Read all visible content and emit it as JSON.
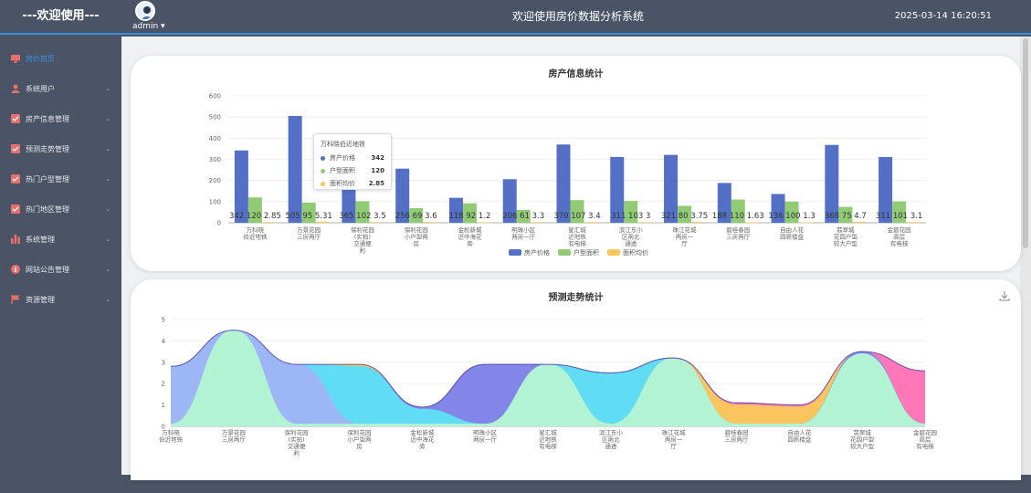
{
  "header": {
    "brand": "---欢迎使用---",
    "user_name": "admin ▾",
    "system_title": "欢迎使用房价数据分析系统",
    "datetime": "2025-03-14 16:20:51"
  },
  "sidebar": {
    "items": [
      {
        "label": "房价首页",
        "icon": "monitor-icon",
        "active": true
      },
      {
        "label": "系统用户",
        "icon": "user-icon"
      },
      {
        "label": "房产信息管理",
        "icon": "checklist-icon"
      },
      {
        "label": "预测走势管理",
        "icon": "checklist-icon"
      },
      {
        "label": "热门户型管理",
        "icon": "checklist-icon"
      },
      {
        "label": "热门地区管理",
        "icon": "checklist-icon"
      },
      {
        "label": "系统管理",
        "icon": "bar-chart-icon"
      },
      {
        "label": "网站公告管理",
        "icon": "info-icon"
      },
      {
        "label": "资源管理",
        "icon": "flag-icon"
      }
    ]
  },
  "colors": {
    "accent": "#3d8fe0",
    "series_price": "#5470c6",
    "series_area": "#91cc75",
    "series_unit": "#fac858"
  },
  "tooltip": {
    "title": "万科晓伯近地铁",
    "rows": [
      {
        "name": "房产价格",
        "value": "342"
      },
      {
        "name": "户型面积",
        "value": "120"
      },
      {
        "name": "面积均价",
        "value": "2.85"
      }
    ]
  },
  "chart_data": [
    {
      "type": "bar",
      "title": "房产信息统计",
      "categories": [
        "万科晓\n伯近地铁",
        "万景花园\n三房两厅",
        "保利花园\n(实拍)\n交通便\n利",
        "保利花园\n小户型两\n房",
        "金松新城\n近中海花\n旁",
        "明珠小区\n两房一厅",
        "星汇城\n近地铁\n有电梯",
        "滨江东小\n区南北\n通透",
        "珠江花城\n两房一\n厅",
        "碧桂春园\n三房两厅",
        "自由人花\n园新楼盘",
        "翡翠城\n花园户型\n较大户型",
        "金碧花园\n高层\n有电梯"
      ],
      "series": [
        {
          "name": "房产价格",
          "values": [
            342,
            505,
            365,
            256,
            118,
            206,
            370,
            311,
            321,
            188,
            136,
            368,
            311
          ]
        },
        {
          "name": "户型面积",
          "values": [
            120,
            95,
            102,
            69,
            92,
            61,
            107,
            103,
            80,
            110,
            100,
            75,
            101
          ]
        },
        {
          "name": "面积均价",
          "values": [
            2.85,
            5.31,
            3.5,
            3.6,
            1.2,
            3.3,
            3.4,
            3.0,
            3.75,
            1.63,
            1.3,
            4.7,
            3.1
          ]
        }
      ],
      "data_labels": [
        "342 120 2.85",
        "505 95 5.31",
        "365 102 3.5",
        "256 69 3.6",
        "118 92 1.2",
        "206 61 3.3",
        "370 107 3.4",
        "311 103 3",
        "321 80 3.75",
        "188 110 1.63",
        "136 100 1.3",
        "368 75 4.7",
        "311 101 3.1"
      ],
      "yticks": [
        "0",
        "100",
        "200",
        "300",
        "400",
        "500",
        "600"
      ],
      "ylim": [
        0,
        600
      ],
      "legend": [
        "房产价格",
        "户型面积",
        "面积均价"
      ],
      "legend_position": "bottom-center",
      "grid": true
    },
    {
      "type": "area",
      "title": "预测走势统计",
      "categories": [
        "万科晓\n伯近地铁",
        "万景花园\n三房两厅",
        "保利花园\n(实拍)\n交通便\n利",
        "保利花园\n小户型两\n房",
        "金松新城\n近中海花\n旁",
        "明珠小区\n两房一厅",
        "星汇城\n近地铁\n有电梯",
        "滨江东小\n区南北\n通透",
        "珠江花城\n两房一\n厅",
        "碧桂春园\n三房两厅",
        "自由人花\n园新楼盘",
        "翡翠城\n花园户型\n较大户型",
        "金碧花园\n高层\n有电梯"
      ],
      "series": [
        {
          "name": "",
          "color": "#ff6fb5",
          "values": [
            2.8,
            4.5,
            2.9,
            2.9,
            0.9,
            2.9,
            2.9,
            2.5,
            3.2,
            1.1,
            1.0,
            3.5,
            2.6
          ]
        },
        {
          "name": "",
          "color": "#fac858",
          "values": [
            2.8,
            4.5,
            2.9,
            2.9,
            0.9,
            2.9,
            2.9,
            2.5,
            3.2,
            1.0,
            0.9,
            3.5,
            0.1
          ]
        },
        {
          "name": "",
          "color": "#7b83f0",
          "values": [
            2.8,
            4.5,
            2.9,
            2.8,
            0.9,
            2.9,
            2.9,
            2.5,
            3.2,
            0.1,
            0.1,
            3.5,
            0.1
          ]
        },
        {
          "name": "",
          "color": "#5ee2f5",
          "values": [
            2.8,
            4.5,
            2.9,
            2.8,
            0.8,
            0.1,
            2.9,
            2.5,
            3.2,
            0.1,
            0.1,
            3.4,
            0.1
          ]
        },
        {
          "name": "",
          "color": "#a0b4f5",
          "values": [
            2.8,
            4.5,
            2.9,
            0.1,
            0.1,
            0.1,
            2.9,
            0.1,
            3.2,
            0.1,
            0.1,
            3.4,
            0.1
          ]
        },
        {
          "name": "",
          "color": "#b2f5d0",
          "values": [
            0.1,
            4.5,
            0.1,
            0.1,
            0.1,
            0.1,
            2.9,
            0.1,
            3.2,
            0.1,
            0.1,
            3.4,
            0.1
          ]
        }
      ],
      "yticks": [
        "0",
        "1",
        "2",
        "3",
        "4",
        "5"
      ],
      "ylim": [
        0,
        5
      ],
      "grid": true
    }
  ]
}
